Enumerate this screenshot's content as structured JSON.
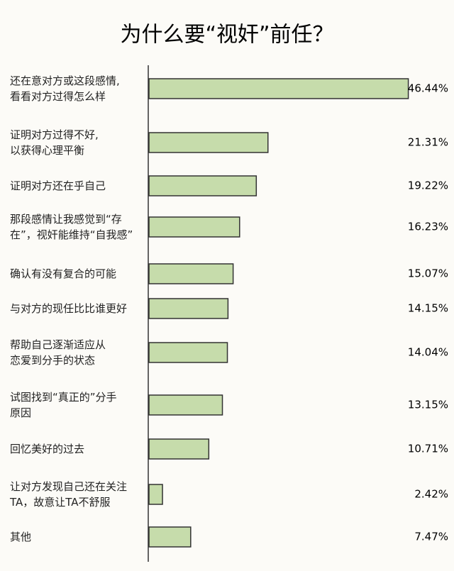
{
  "chart_data": {
    "type": "hbar",
    "title": "为什么要“视奸”前任？",
    "categories": [
      "还在意对方或这段感情,\n看看对方过得怎么样",
      "证明对方过得不好,\n以获得心理平衡",
      "证明对方还在乎自己",
      "那段感情让我感觉到“存\n在”，视奸能维持“自我感”",
      "确认有没有复合的可能",
      "与对方的现任比比谁更好",
      "帮助自己逐渐适应从\n恋爱到分手的状态",
      "试图找到“真正的”分手\n原因",
      "回忆美好的过去",
      "让对方发现自己还在关注\nTA，故意让TA不舒服",
      "其他"
    ],
    "values": [
      46.44,
      21.31,
      19.22,
      16.23,
      15.07,
      14.15,
      14.04,
      13.15,
      10.71,
      2.42,
      7.47
    ],
    "value_labels": [
      "46.44%",
      "21.31%",
      "19.22%",
      "16.23%",
      "15.07%",
      "14.15%",
      "14.04%",
      "13.15%",
      "10.71%",
      "2.42%",
      "7.47%"
    ],
    "color": "#c6dcab",
    "xlim": [
      0,
      47
    ]
  }
}
